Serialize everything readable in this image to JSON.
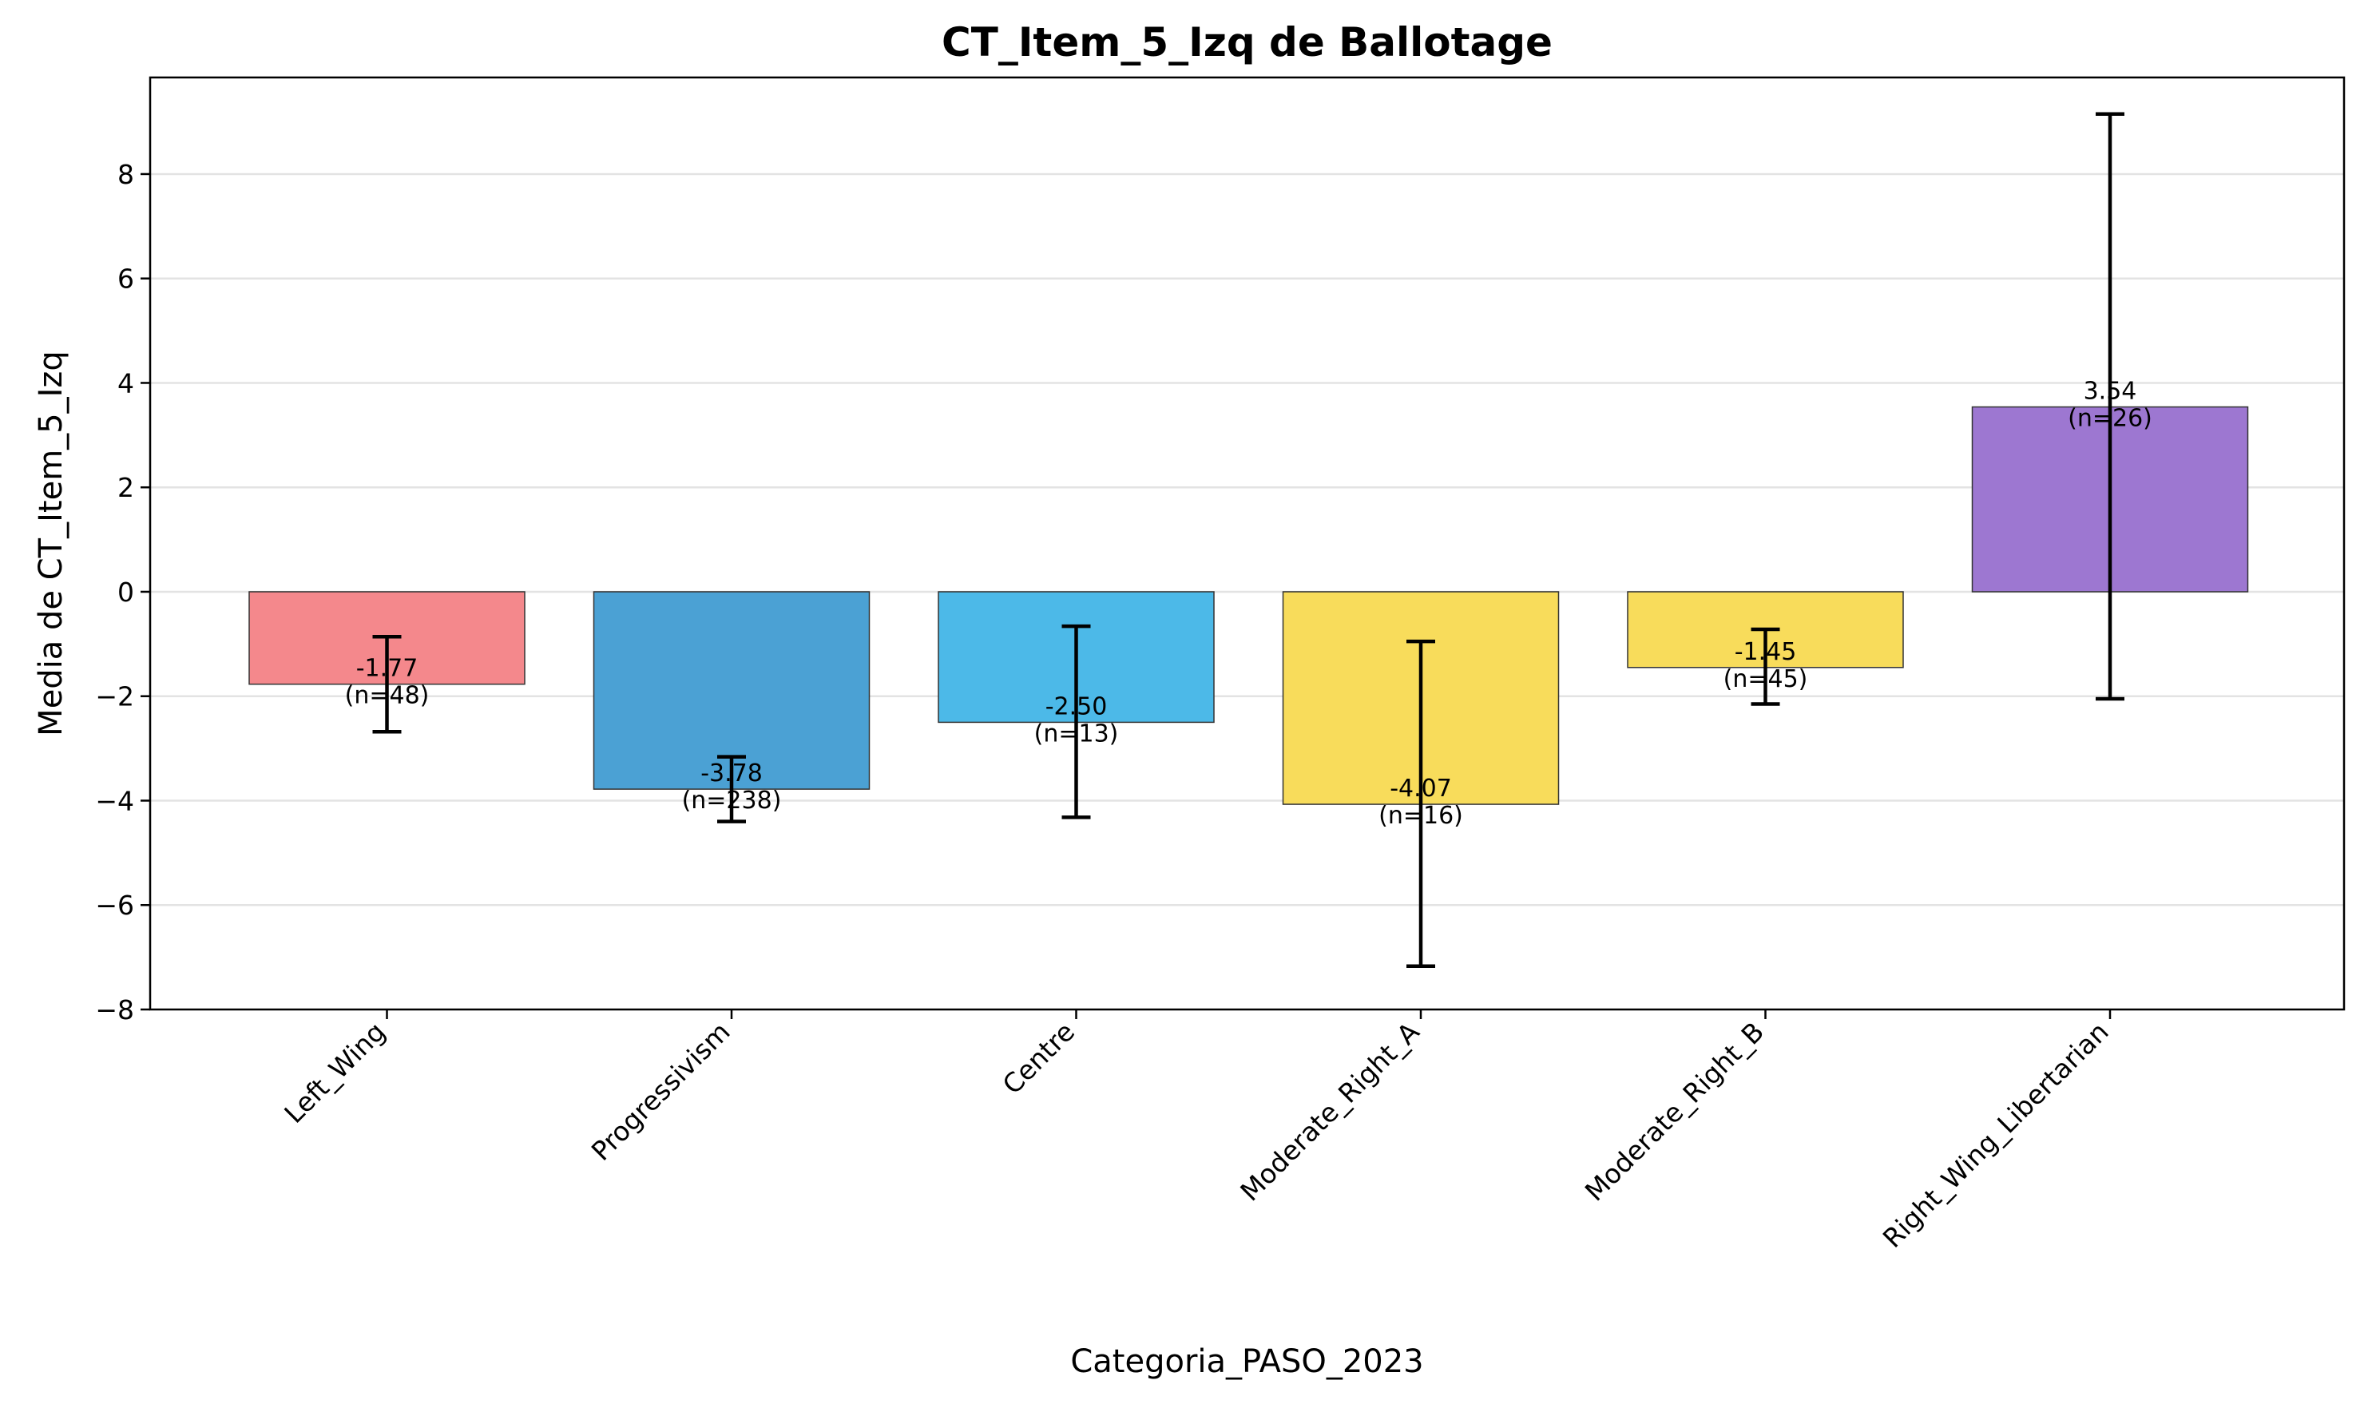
{
  "chart_data": {
    "type": "bar",
    "title": "CT_Item_5_Izq de Ballotage",
    "xlabel": "Categoria_PASO_2023",
    "ylabel": "Media de CT_Item_5_Izq",
    "ylim": [
      -8,
      9.85
    ],
    "yticks": [
      -8,
      -6,
      -4,
      -2,
      0,
      2,
      4,
      6,
      8
    ],
    "grid": "horizontal",
    "categories": [
      "Left_Wing",
      "Progressivism",
      "Centre",
      "Moderate_Right_A",
      "Moderate_Right_B",
      "Right_Wing_Libertarian"
    ],
    "values": [
      -1.77,
      -3.78,
      -2.5,
      -4.07,
      -1.45,
      3.54
    ],
    "error_low": [
      -2.68,
      -4.4,
      -4.32,
      -7.17,
      -2.15,
      -2.05
    ],
    "error_high": [
      -0.86,
      -3.16,
      -0.66,
      -0.95,
      -0.72,
      9.15
    ],
    "value_labels": [
      "-1.77",
      "-3.78",
      "-2.50",
      "-4.07",
      "-1.45",
      "3.54"
    ],
    "n_labels": [
      "(n=48)",
      "(n=238)",
      "(n=13)",
      "(n=16)",
      "(n=45)",
      "(n=26)"
    ],
    "colors": [
      "#f4888c",
      "#4ba1d4",
      "#4cb9e8",
      "#f8dc5b",
      "#f8dc5b",
      "#9d77d1"
    ]
  }
}
